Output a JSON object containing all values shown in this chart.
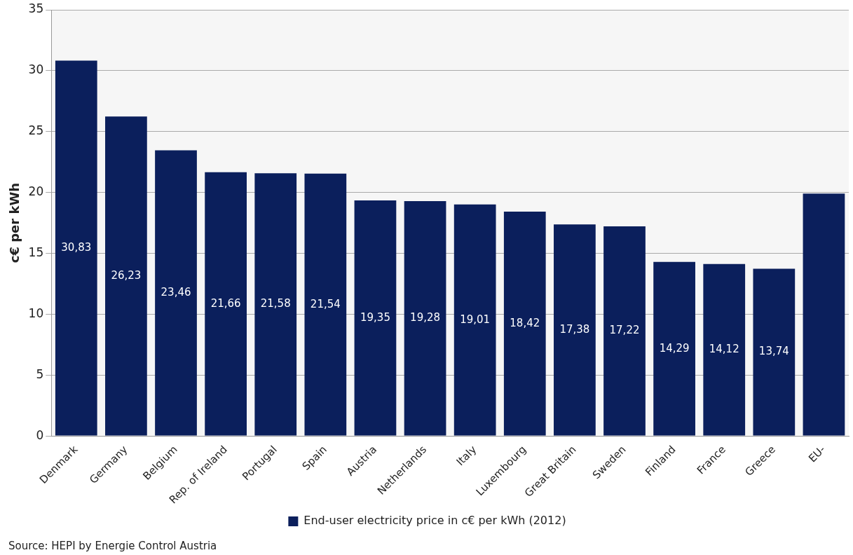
{
  "chart_data": {
    "type": "bar",
    "ylabel": "c€ per kWh",
    "categories": [
      "Denmark",
      "Germany",
      "Belgium",
      "Rep. of Ireland",
      "Portugal",
      "Spain",
      "Austria",
      "Netherlands",
      "Italy",
      "Luxembourg",
      "Great Britain",
      "Sweden",
      "Finland",
      "France",
      "Greece",
      "EU-"
    ],
    "series": [
      {
        "name": "End-user electricity price in c€ per kWh (2012)",
        "color": "#0b1f5c",
        "values": [
          30.83,
          26.23,
          23.46,
          21.66,
          21.58,
          21.54,
          19.35,
          19.28,
          19.01,
          18.42,
          17.38,
          17.22,
          14.29,
          14.12,
          13.74,
          19.9
        ],
        "value_labels": [
          "30,83",
          "26,23",
          "23,46",
          "21,66",
          "21,58",
          "21,54",
          "19,35",
          "19,28",
          "19,01",
          "18,42",
          "17,38",
          "17,22",
          "14,29",
          "14,12",
          "13,74",
          null
        ]
      }
    ],
    "ylim": [
      0,
      35
    ],
    "yticks": [
      0,
      5,
      10,
      15,
      20,
      25,
      30,
      35
    ],
    "grid": "y",
    "legend": "bottom",
    "annotations": [
      "Source: HEPI by Energie Control Austria"
    ]
  }
}
